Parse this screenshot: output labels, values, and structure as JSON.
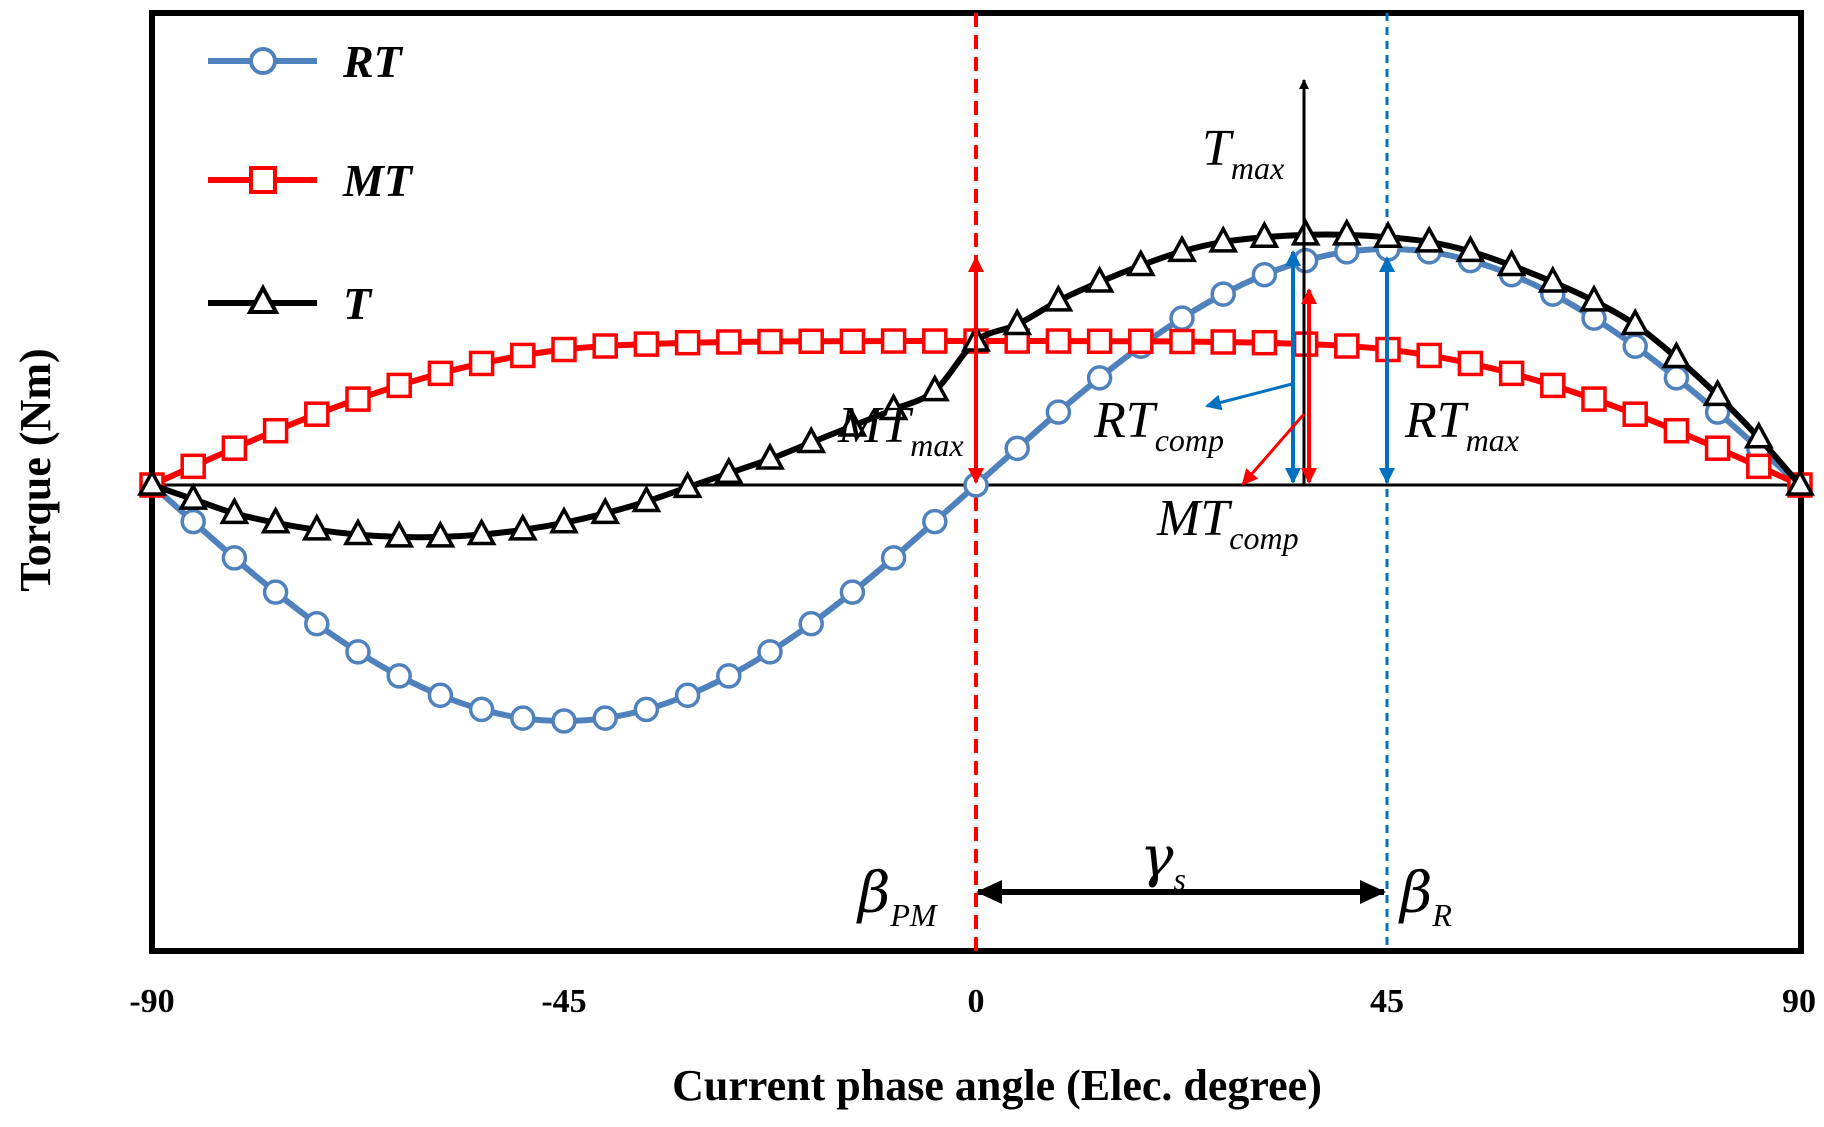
{
  "chart_data": {
    "type": "line",
    "xlabel": "Current phase angle (Elec. degree)",
    "ylabel": "Torque (Nm)",
    "xlim": [
      -90,
      90
    ],
    "ylim": [
      -1.05,
      1.05
    ],
    "xticks": [
      "-90",
      "-45",
      "0",
      "45",
      "90"
    ],
    "x": [
      -90,
      -85.5,
      -81,
      -76.5,
      -72,
      -67.5,
      -63,
      -58.5,
      -54,
      -49.5,
      -45,
      -40.5,
      -36,
      -31.5,
      -27,
      -22.5,
      -18,
      -13.5,
      -9,
      -4.5,
      0,
      4.5,
      9,
      13.5,
      18,
      22.5,
      27,
      31.5,
      36,
      40.5,
      45,
      49.5,
      54,
      58.5,
      63,
      67.5,
      72,
      76.5,
      81,
      85.5,
      90
    ],
    "series": [
      {
        "name": "RT",
        "label_main": "RT",
        "color": "#4F81BD",
        "marker": "circle",
        "values": [
          0,
          -0.155,
          -0.309,
          -0.454,
          -0.588,
          -0.707,
          -0.809,
          -0.891,
          -0.951,
          -0.988,
          -1,
          -0.988,
          -0.951,
          -0.891,
          -0.809,
          -0.707,
          -0.588,
          -0.454,
          -0.309,
          -0.155,
          0,
          0.155,
          0.309,
          0.454,
          0.588,
          0.707,
          0.809,
          0.891,
          0.951,
          0.988,
          1,
          0.988,
          0.951,
          0.891,
          0.809,
          0.707,
          0.588,
          0.454,
          0.309,
          0.155,
          0
        ]
      },
      {
        "name": "MT",
        "label_main": "MT",
        "color": "#FF0000",
        "marker": "square",
        "values": [
          0,
          0.079,
          0.156,
          0.23,
          0.3,
          0.364,
          0.422,
          0.473,
          0.515,
          0.549,
          0.574,
          0.589,
          0.597,
          0.603,
          0.606,
          0.608,
          0.609,
          0.609,
          0.61,
          0.61,
          0.61,
          0.61,
          0.61,
          0.609,
          0.609,
          0.608,
          0.606,
          0.603,
          0.597,
          0.589,
          0.574,
          0.549,
          0.515,
          0.473,
          0.422,
          0.364,
          0.3,
          0.23,
          0.156,
          0.079,
          0
        ]
      },
      {
        "name": "T",
        "label_main": "T",
        "color": "#000000",
        "marker": "triangle",
        "values": [
          0,
          -0.06,
          -0.12,
          -0.16,
          -0.19,
          -0.21,
          -0.22,
          -0.22,
          -0.21,
          -0.19,
          -0.16,
          -0.12,
          -0.07,
          -0.01,
          0.05,
          0.11,
          0.18,
          0.25,
          0.32,
          0.4,
          0.61,
          0.68,
          0.78,
          0.86,
          0.93,
          0.99,
          1.03,
          1.05,
          1.06,
          1.06,
          1.05,
          1.03,
          0.99,
          0.93,
          0.86,
          0.78,
          0.68,
          0.54,
          0.38,
          0.2,
          0
        ]
      }
    ],
    "vlines": [
      {
        "name": "beta-pm-line",
        "x": 0,
        "color": "#FF0000"
      },
      {
        "name": "beta-r-line",
        "x": 45,
        "color": "#0070C0"
      }
    ],
    "annotations": {
      "t_max": {
        "main": "T",
        "sub": "max"
      },
      "mt_max": {
        "main": "MT",
        "sub": "max"
      },
      "rt_max": {
        "main": "RT",
        "sub": "max"
      },
      "rt_comp": {
        "main": "RT",
        "sub": "comp"
      },
      "mt_comp": {
        "main": "MT",
        "sub": "comp"
      },
      "gamma_s": {
        "main": "γ",
        "sub": "s"
      },
      "beta_pm": {
        "main": "β",
        "sub": "PM"
      },
      "beta_r": {
        "main": "β",
        "sub": "R"
      }
    },
    "colors": {
      "rt": "#4F81BD",
      "mt": "#FF0000",
      "t": "#000000",
      "rt_arrow": "#0070C0"
    }
  }
}
